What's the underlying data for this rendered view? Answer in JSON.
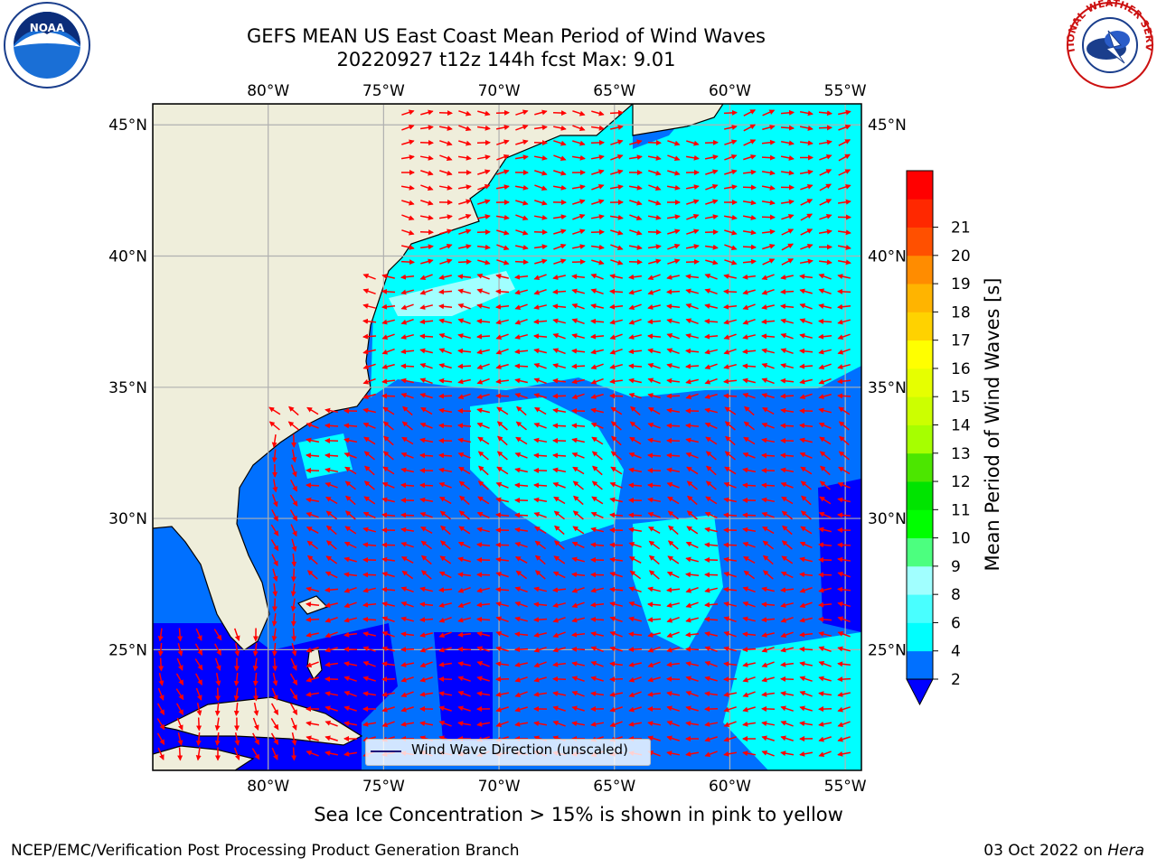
{
  "header": {
    "title_line1": "GEFS MEAN US East Coast Mean Period of Wind Waves",
    "title_line2": "20220927 t12z 144h fcst   Max: 9.01"
  },
  "logos": {
    "left": "NOAA",
    "right": "NATIONAL WEATHER SERVICE"
  },
  "map": {
    "lon_ticks": [
      {
        "value": -80,
        "label": "80°W"
      },
      {
        "value": -75,
        "label": "75°W"
      },
      {
        "value": -70,
        "label": "70°W"
      },
      {
        "value": -65,
        "label": "65°W"
      },
      {
        "value": -60,
        "label": "60°W"
      },
      {
        "value": -55,
        "label": "55°W"
      }
    ],
    "lat_ticks": [
      {
        "value": 45,
        "label": "45°N"
      },
      {
        "value": 40,
        "label": "40°N"
      },
      {
        "value": 35,
        "label": "35°N"
      },
      {
        "value": 30,
        "label": "30°N"
      },
      {
        "value": 25,
        "label": "25°N"
      }
    ],
    "extent": {
      "lon_min": -85,
      "lon_max": -54.3,
      "lat_min": 20.4,
      "lat_max": 45.8
    },
    "colors": {
      "land": "#efeedb",
      "period_2_4": "#0070ff",
      "period_4_6": "#00ffff",
      "period_under_2": "#0000ff",
      "arrows": "#ff0000",
      "coast": "#000000",
      "grid": "#b0b0b0"
    }
  },
  "legend": {
    "label": "Wind Wave Direction (unscaled)"
  },
  "colorbar": {
    "title": "Mean Period of Wind Waves [s]",
    "ticks": [
      "2",
      "4",
      "6",
      "8",
      "9",
      "10",
      "11",
      "12",
      "13",
      "14",
      "15",
      "16",
      "17",
      "18",
      "19",
      "20",
      "21"
    ],
    "colors": [
      "#0070ff",
      "#00ffff",
      "#49ffff",
      "#a1ffff",
      "#4cff7f",
      "#00ff00",
      "#00e400",
      "#4ce600",
      "#a6ff00",
      "#ccff00",
      "#e6ff00",
      "#ffff00",
      "#ffd200",
      "#ffb400",
      "#ff8c00",
      "#ff5000",
      "#ff2800",
      "#ff0000"
    ],
    "under_color": "#0000ff"
  },
  "footer": {
    "note": "Sea Ice Concentration > 15% is shown in pink to yellow",
    "credit_left": "NCEP/EMC/Verification Post Processing Product Generation Branch",
    "credit_date": "03 Oct 2022 on",
    "credit_system": "Hera"
  }
}
